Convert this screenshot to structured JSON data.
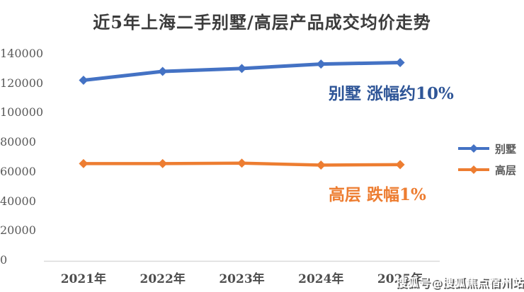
{
  "chart_data": {
    "type": "line",
    "title": "近5年上海二手别墅/高层产品成交均价走势",
    "categories": [
      "2021年",
      "2022年",
      "2023年",
      "2024年",
      "2025年"
    ],
    "series": [
      {
        "key": "villa",
        "name": "别墅",
        "color": "#4472C4",
        "marker": "diamond",
        "values": [
          122000,
          128000,
          130000,
          133000,
          134000
        ]
      },
      {
        "key": "highrise",
        "name": "高层",
        "color": "#ED7D31",
        "marker": "diamond",
        "values": [
          65500,
          65500,
          65800,
          64500,
          64800
        ]
      }
    ],
    "ylim": [
      0,
      140000
    ],
    "ytick_step": 20000,
    "grid": false,
    "legend_position": "right",
    "axis_line_color": "#D9D9D9"
  },
  "annotations": {
    "villa": {
      "text": "别墅 涨幅约10%",
      "color": "#2E5597"
    },
    "highrise": {
      "text": "高层 跌幅1%",
      "color": "#ED7D31"
    }
  },
  "watermark": {
    "text": "搜狐号@搜狐焦点宿州站"
  }
}
